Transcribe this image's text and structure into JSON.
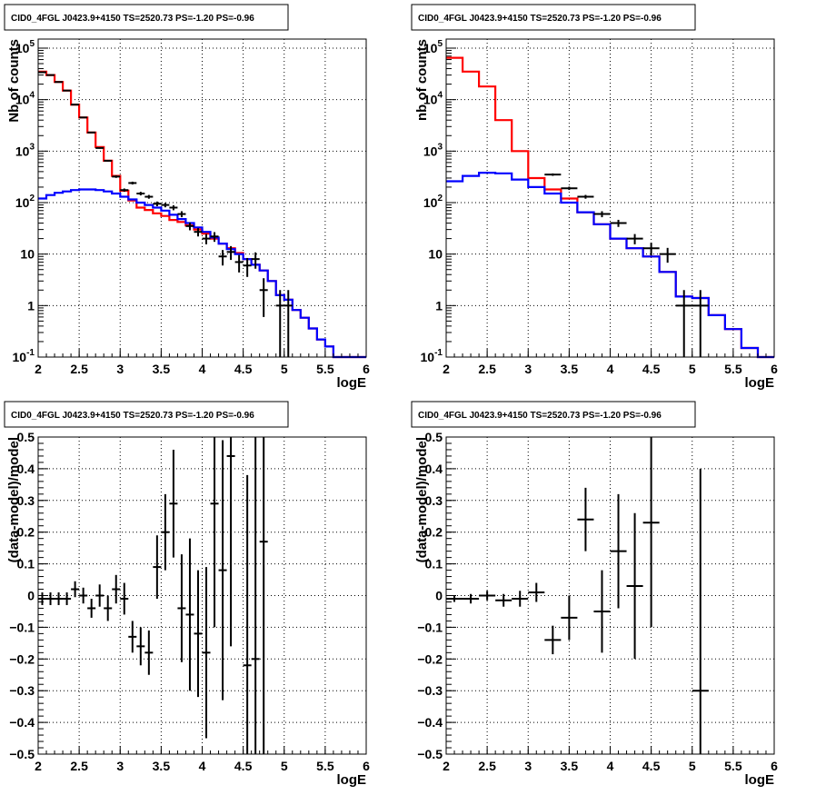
{
  "chart_data": [
    {
      "type": "line",
      "title": "CID0_4FGL J0423.9+4150 TS=2520.73 PS=-1.20 PS=-0.96",
      "xlabel": "logE",
      "ylabel": "Nb of counts",
      "xlim": [
        2,
        6
      ],
      "ylim": [
        0.1,
        150000
      ],
      "yscale": "log",
      "grid": true,
      "xticks": [
        "2",
        "2.5",
        "3",
        "3.5",
        "4",
        "4.5",
        "5",
        "5.5",
        "6"
      ],
      "yticks": [
        {
          "base": "10",
          "exp": "-1"
        },
        {
          "base": "1",
          "exp": ""
        },
        {
          "base": "10",
          "exp": ""
        },
        {
          "base": "10",
          "exp": "2"
        },
        {
          "base": "10",
          "exp": "3"
        },
        {
          "base": "10",
          "exp": "4"
        },
        {
          "base": "10",
          "exp": "5"
        }
      ],
      "ytick_values": [
        0.1,
        1,
        10,
        100,
        1000,
        10000,
        100000
      ],
      "bin_edges": [
        2.0,
        2.1,
        2.2,
        2.3,
        2.4,
        2.5,
        2.6,
        2.7,
        2.8,
        2.9,
        3.0,
        3.1,
        3.2,
        3.3,
        3.4,
        3.5,
        3.6,
        3.7,
        3.8,
        3.9,
        4.0,
        4.1,
        4.2,
        4.3,
        4.4,
        4.5,
        4.6,
        4.7,
        4.8,
        4.9,
        5.0,
        5.1,
        5.2,
        5.3,
        5.4,
        5.5,
        5.6,
        5.7,
        5.8,
        5.9,
        6.0
      ],
      "series": [
        {
          "color": "#ff0000",
          "values": [
            35000,
            30000,
            22000,
            15000,
            8000,
            4500,
            2300,
            1200,
            650,
            330,
            170,
            110,
            80,
            72,
            62,
            55,
            46,
            42,
            36,
            30,
            25,
            20,
            16,
            13,
            10.5,
            8,
            6.2,
            4.8,
            3,
            1.6,
            1.3,
            0.82,
            0.58,
            0.36,
            0.22,
            0.16,
            0.1,
            0.1,
            0.1,
            0.1
          ]
        },
        {
          "color": "#0000ff",
          "values": [
            120,
            140,
            155,
            165,
            175,
            180,
            180,
            175,
            165,
            150,
            130,
            115,
            100,
            90,
            80,
            70,
            58,
            48,
            40,
            33,
            27,
            21,
            16,
            12.5,
            10,
            8,
            6.2,
            4.8,
            3,
            1.6,
            1.3,
            0.82,
            0.58,
            0.36,
            0.22,
            0.16,
            0.1,
            0.1,
            0.1,
            0.1
          ]
        }
      ],
      "points": [
        {
          "x": 2.05,
          "y": 34000,
          "err": 200
        },
        {
          "x": 2.15,
          "y": 30000,
          "err": 180
        },
        {
          "x": 2.25,
          "y": 22000,
          "err": 150
        },
        {
          "x": 2.35,
          "y": 15000,
          "err": 120
        },
        {
          "x": 2.45,
          "y": 8000,
          "err": 90
        },
        {
          "x": 2.55,
          "y": 4500,
          "err": 70
        },
        {
          "x": 2.65,
          "y": 2300,
          "err": 50
        },
        {
          "x": 2.75,
          "y": 1150,
          "err": 35
        },
        {
          "x": 2.85,
          "y": 650,
          "err": 25
        },
        {
          "x": 2.95,
          "y": 320,
          "err": 18
        },
        {
          "x": 3.05,
          "y": 175,
          "err": 13
        },
        {
          "x": 3.15,
          "y": 240,
          "err": 15
        },
        {
          "x": 3.25,
          "y": 150,
          "err": 12
        },
        {
          "x": 3.35,
          "y": 130,
          "err": 11
        },
        {
          "x": 3.45,
          "y": 95,
          "err": 10
        },
        {
          "x": 3.55,
          "y": 90,
          "err": 9
        },
        {
          "x": 3.65,
          "y": 80,
          "err": 9
        },
        {
          "x": 3.75,
          "y": 60,
          "err": 8
        },
        {
          "x": 3.85,
          "y": 35,
          "err": 6
        },
        {
          "x": 3.95,
          "y": 27,
          "err": 5
        },
        {
          "x": 4.05,
          "y": 20,
          "err": 4.5
        },
        {
          "x": 4.15,
          "y": 22,
          "err": 4.7
        },
        {
          "x": 4.25,
          "y": 9,
          "err": 3
        },
        {
          "x": 4.35,
          "y": 11,
          "err": 3.3
        },
        {
          "x": 4.45,
          "y": 7,
          "err": 2.6
        },
        {
          "x": 4.55,
          "y": 6,
          "err": 2.4
        },
        {
          "x": 4.65,
          "y": 8,
          "err": 2.8
        },
        {
          "x": 4.75,
          "y": 2,
          "err": 1.4
        },
        {
          "x": 4.95,
          "y": 1,
          "err": 1.0
        },
        {
          "x": 5.05,
          "y": 1,
          "err": 1.0
        }
      ]
    },
    {
      "type": "line",
      "title": "CID0_4FGL J0423.9+4150 TS=2520.73 PS=-1.20 PS=-0.96",
      "xlabel": "logE",
      "ylabel": "nb of counts",
      "xlim": [
        2,
        6
      ],
      "ylim": [
        0.1,
        150000
      ],
      "yscale": "log",
      "grid": true,
      "xticks": [
        "2",
        "2.5",
        "3",
        "3.5",
        "4",
        "4.5",
        "5",
        "5.5",
        "6"
      ],
      "yticks": [
        {
          "base": "10",
          "exp": "-1"
        },
        {
          "base": "1",
          "exp": ""
        },
        {
          "base": "10",
          "exp": ""
        },
        {
          "base": "10",
          "exp": "2"
        },
        {
          "base": "10",
          "exp": "3"
        },
        {
          "base": "10",
          "exp": "4"
        },
        {
          "base": "10",
          "exp": "5"
        }
      ],
      "ytick_values": [
        0.1,
        1,
        10,
        100,
        1000,
        10000,
        100000
      ],
      "bin_edges": [
        2.0,
        2.2,
        2.4,
        2.6,
        2.8,
        3.0,
        3.2,
        3.4,
        3.6,
        3.8,
        4.0,
        4.2,
        4.4,
        4.6,
        4.8,
        5.0,
        5.2,
        5.4,
        5.6,
        5.8,
        6.0
      ],
      "series": [
        {
          "color": "#ff0000",
          "values": [
            65000,
            35000,
            18000,
            4000,
            1000,
            300,
            180,
            120,
            65,
            38,
            20,
            13,
            9,
            4.5,
            1.5,
            1.4,
            0.65,
            0.35,
            0.15,
            0.1
          ]
        },
        {
          "color": "#0000ff",
          "values": [
            260,
            330,
            380,
            370,
            280,
            200,
            150,
            100,
            65,
            38,
            20,
            13,
            9,
            4.5,
            1.5,
            1.4,
            0.65,
            0.35,
            0.15,
            0.1
          ]
        }
      ],
      "points": [
        {
          "x": 3.3,
          "y": 350,
          "err": 19
        },
        {
          "x": 3.5,
          "y": 190,
          "err": 14
        },
        {
          "x": 3.7,
          "y": 130,
          "err": 11
        },
        {
          "x": 3.9,
          "y": 60,
          "err": 8
        },
        {
          "x": 4.1,
          "y": 40,
          "err": 6.3
        },
        {
          "x": 4.3,
          "y": 20,
          "err": 4.5
        },
        {
          "x": 4.5,
          "y": 13,
          "err": 3.6
        },
        {
          "x": 4.7,
          "y": 10,
          "err": 3.2
        },
        {
          "x": 4.9,
          "y": 1,
          "err": 1.0
        },
        {
          "x": 5.1,
          "y": 1,
          "err": 1.0
        }
      ]
    },
    {
      "type": "scatter",
      "title": "CID0_4FGL J0423.9+4150 TS=2520.73 PS=-1.20 PS=-0.96",
      "xlabel": "logE",
      "ylabel": "(data-model)/model",
      "xlim": [
        2,
        6
      ],
      "ylim": [
        -0.5,
        0.5
      ],
      "grid": true,
      "xticks": [
        "2",
        "2.5",
        "3",
        "3.5",
        "4",
        "4.5",
        "5",
        "5.5",
        "6"
      ],
      "ytick_labels": [
        "−0.5",
        "−0.4",
        "−0.3",
        "−0.2",
        "−0.1",
        "0",
        "0.1",
        "0.2",
        "0.3",
        "0.4",
        "0.5"
      ],
      "ytick_values": [
        -0.5,
        -0.4,
        -0.3,
        -0.2,
        -0.1,
        0,
        0.1,
        0.2,
        0.3,
        0.4,
        0.5
      ],
      "points": [
        {
          "x": 2.05,
          "y": -0.01,
          "err": 0.02
        },
        {
          "x": 2.15,
          "y": -0.01,
          "err": 0.02
        },
        {
          "x": 2.25,
          "y": -0.01,
          "err": 0.02
        },
        {
          "x": 2.35,
          "y": -0.01,
          "err": 0.02
        },
        {
          "x": 2.45,
          "y": 0.02,
          "err": 0.025
        },
        {
          "x": 2.55,
          "y": 0.0,
          "err": 0.025
        },
        {
          "x": 2.65,
          "y": -0.04,
          "err": 0.03
        },
        {
          "x": 2.75,
          "y": 0.0,
          "err": 0.035
        },
        {
          "x": 2.85,
          "y": -0.04,
          "err": 0.04
        },
        {
          "x": 2.95,
          "y": 0.02,
          "err": 0.045
        },
        {
          "x": 3.05,
          "y": -0.01,
          "err": 0.05
        },
        {
          "x": 3.15,
          "y": -0.13,
          "err": 0.05
        },
        {
          "x": 3.25,
          "y": -0.16,
          "err": 0.06
        },
        {
          "x": 3.35,
          "y": -0.18,
          "err": 0.07
        },
        {
          "x": 3.45,
          "y": 0.09,
          "err": 0.1
        },
        {
          "x": 3.55,
          "y": 0.2,
          "err": 0.12
        },
        {
          "x": 3.65,
          "y": 0.29,
          "err": 0.17
        },
        {
          "x": 3.75,
          "y": -0.04,
          "err": 0.17
        },
        {
          "x": 3.85,
          "y": -0.06,
          "err": 0.24
        },
        {
          "x": 3.95,
          "y": -0.12,
          "err": 0.2
        },
        {
          "x": 4.05,
          "y": -0.18,
          "err": 0.27
        },
        {
          "x": 4.15,
          "y": 0.29,
          "err": 0.39
        },
        {
          "x": 4.25,
          "y": 0.08,
          "err": 0.41
        },
        {
          "x": 4.35,
          "y": 0.44,
          "err": 0.6
        },
        {
          "x": 4.55,
          "y": -0.22,
          "err": 0.6
        },
        {
          "x": 4.65,
          "y": -0.2,
          "err": 0.9
        },
        {
          "x": 4.75,
          "y": 0.17,
          "err": 1.0
        }
      ]
    },
    {
      "type": "scatter",
      "title": "CID0_4FGL J0423.9+4150 TS=2520.73 PS=-1.20 PS=-0.96",
      "xlabel": "logE",
      "ylabel": "(data-model)/model",
      "xlim": [
        2,
        6
      ],
      "ylim": [
        -0.5,
        0.5
      ],
      "grid": true,
      "xticks": [
        "2",
        "2.5",
        "3",
        "3.5",
        "4",
        "4.5",
        "5",
        "5.5",
        "6"
      ],
      "ytick_labels": [
        "−0.5",
        "−0.4",
        "−0.3",
        "−0.2",
        "−0.1",
        "0",
        "0.1",
        "0.2",
        "0.3",
        "0.4",
        "0.5"
      ],
      "ytick_values": [
        -0.5,
        -0.4,
        -0.3,
        -0.2,
        -0.1,
        0,
        0.1,
        0.2,
        0.3,
        0.4,
        0.5
      ],
      "points": [
        {
          "x": 2.1,
          "y": -0.01,
          "err": 0.01
        },
        {
          "x": 2.3,
          "y": -0.01,
          "err": 0.015
        },
        {
          "x": 2.5,
          "y": 0.0,
          "err": 0.015
        },
        {
          "x": 2.7,
          "y": -0.015,
          "err": 0.02
        },
        {
          "x": 2.9,
          "y": -0.01,
          "err": 0.025
        },
        {
          "x": 3.1,
          "y": 0.01,
          "err": 0.03
        },
        {
          "x": 3.3,
          "y": -0.14,
          "err": 0.045
        },
        {
          "x": 3.5,
          "y": -0.07,
          "err": 0.07
        },
        {
          "x": 3.7,
          "y": 0.24,
          "err": 0.1
        },
        {
          "x": 3.9,
          "y": -0.05,
          "err": 0.13
        },
        {
          "x": 4.1,
          "y": 0.14,
          "err": 0.18
        },
        {
          "x": 4.3,
          "y": 0.03,
          "err": 0.23
        },
        {
          "x": 4.5,
          "y": 0.23,
          "err": 0.33
        },
        {
          "x": 5.1,
          "y": -0.3,
          "err": 0.7
        }
      ]
    }
  ]
}
